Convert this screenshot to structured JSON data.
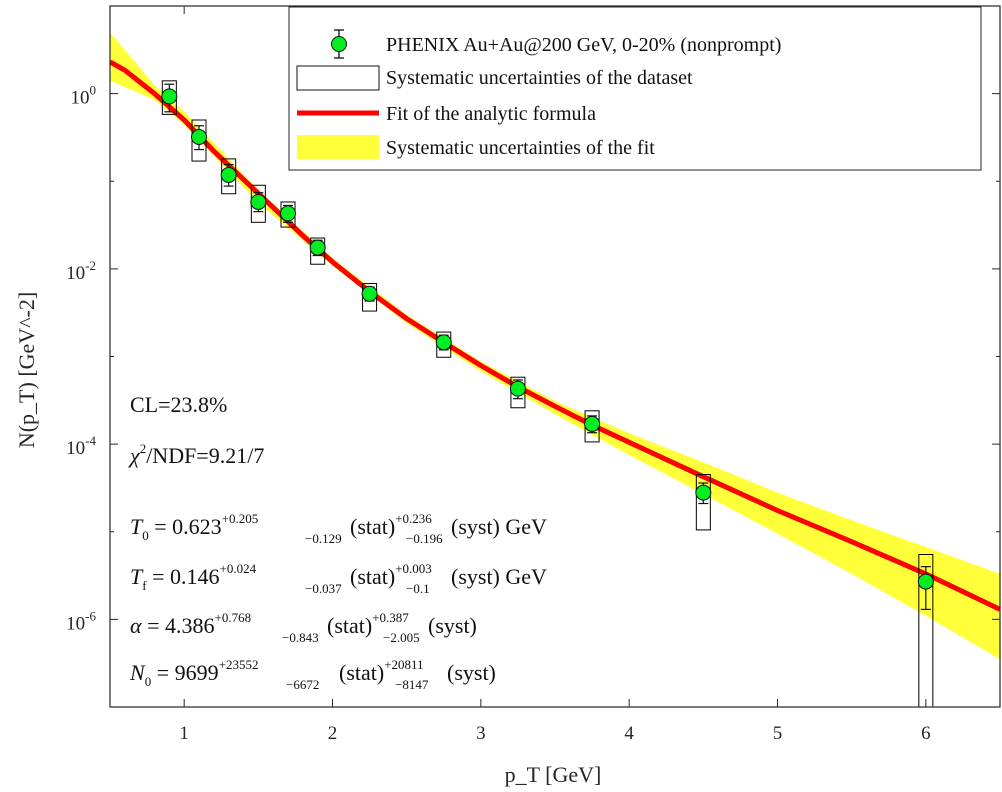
{
  "chart_data": {
    "type": "scatter",
    "title": "",
    "xlabel": "p_T [GeV]",
    "ylabel": "N(p_T) [GeV^-2]",
    "xlim": [
      0.5,
      6.5
    ],
    "ylim": [
      1e-07,
      10
    ],
    "y_scale": "log",
    "grid": false,
    "legend_position": "top-right",
    "x_ticks": [
      "1",
      "2",
      "3",
      "4",
      "5",
      "6"
    ],
    "y_ticks": [
      {
        "value": 1,
        "base": "10",
        "exp": "0"
      },
      {
        "value": 0.01,
        "base": "10",
        "exp": "-2"
      },
      {
        "value": 0.0001,
        "base": "10",
        "exp": "-4"
      },
      {
        "value": 1e-06,
        "base": "10",
        "exp": "-6"
      }
    ],
    "legend": [
      {
        "label": "PHENIX Au+Au@200 GeV, 0-20% (nonprompt)",
        "kind": "marker"
      },
      {
        "label": "Systematic uncertainties of the dataset",
        "kind": "box"
      },
      {
        "label": "Fit of the analytic formula",
        "kind": "line"
      },
      {
        "label": "Systematic uncertainties of the fit",
        "kind": "band"
      }
    ],
    "series": [
      {
        "name": "PHENIX Au+Au@200 GeV, 0-20% (nonprompt)",
        "points": [
          {
            "x": 0.9,
            "y": 0.93,
            "stat": [
              0.62,
              1.28
            ],
            "syst": [
              0.58,
              1.4
            ]
          },
          {
            "x": 1.1,
            "y": 0.32,
            "stat": [
              0.23,
              0.43
            ],
            "syst": [
              0.17,
              0.5
            ]
          },
          {
            "x": 1.3,
            "y": 0.118,
            "stat": [
              0.088,
              0.155
            ],
            "syst": [
              0.072,
              0.18
            ]
          },
          {
            "x": 1.5,
            "y": 0.058,
            "stat": [
              0.045,
              0.074
            ],
            "syst": [
              0.034,
              0.09
            ]
          },
          {
            "x": 1.7,
            "y": 0.043,
            "stat": [
              0.034,
              0.053
            ],
            "syst": [
              0.03,
              0.058
            ]
          },
          {
            "x": 1.9,
            "y": 0.0175,
            "stat": [
              0.0142,
              0.0212
            ],
            "syst": [
              0.0113,
              0.0225
            ]
          },
          {
            "x": 2.25,
            "y": 0.0052,
            "stat": [
              0.0043,
              0.0062
            ],
            "syst": [
              0.0033,
              0.0068
            ]
          },
          {
            "x": 2.75,
            "y": 0.00145,
            "stat": [
              0.00119,
              0.00175
            ],
            "syst": [
              0.00098,
              0.0019
            ]
          },
          {
            "x": 3.25,
            "y": 0.00043,
            "stat": [
              0.00033,
              0.00054
            ],
            "syst": [
              0.00026,
              0.00058
            ]
          },
          {
            "x": 3.75,
            "y": 0.00017,
            "stat": [
              0.000135,
              0.00021
            ],
            "syst": [
              0.000106,
              0.00024
            ]
          },
          {
            "x": 4.5,
            "y": 2.8e-05,
            "stat": [
              2.1e-05,
              3.6e-05
            ],
            "syst": [
              1.05e-05,
              4.5e-05
            ]
          },
          {
            "x": 6.0,
            "y": 2.7e-06,
            "stat": [
              1.3e-06,
              4e-06
            ],
            "syst": [
              1e-07,
              5.5e-06
            ]
          }
        ]
      },
      {
        "name": "Fit of the analytic formula",
        "x": [
          0.5,
          0.6,
          0.8,
          1.0,
          1.2,
          1.4,
          1.6,
          1.8,
          2.0,
          2.25,
          2.5,
          2.75,
          3.0,
          3.25,
          3.5,
          3.75,
          4.0,
          4.5,
          5.0,
          5.5,
          6.0,
          6.5
        ],
        "y": [
          2.3,
          1.85,
          1.0,
          0.5,
          0.22,
          0.105,
          0.05,
          0.024,
          0.012,
          0.0055,
          0.0027,
          0.00145,
          0.00079,
          0.00045,
          0.00027,
          0.000165,
          0.000105,
          4.25e-05,
          1.75e-05,
          7.7e-06,
          3.3e-06,
          1.3e-06
        ]
      },
      {
        "name": "Systematic uncertainties of the fit",
        "x": [
          0.5,
          0.8,
          1.0,
          1.5,
          2.0,
          2.5,
          3.0,
          3.5,
          4.0,
          4.5,
          5.0,
          5.5,
          6.0,
          6.5
        ],
        "y_low": [
          1.4,
          0.85,
          0.44,
          0.057,
          0.0108,
          0.0024,
          0.00068,
          0.00022,
          7.5e-05,
          2.7e-05,
          9.5e-06,
          3.3e-06,
          1.1e-06,
          3.5e-07
        ],
        "y_high": [
          5.0,
          1.25,
          0.62,
          0.08,
          0.0133,
          0.003,
          0.00088,
          0.00031,
          0.000133,
          6.2e-05,
          2.8e-05,
          1.35e-05,
          6.7e-06,
          3.3e-06
        ]
      }
    ],
    "colors": {
      "marker": "#00ee22",
      "fit": "#ff0000",
      "band": "#ffff3a",
      "box": "#000000"
    },
    "annotations": {
      "cl": "CL=23.8%",
      "chi2": {
        "sym": "χ",
        "sup": "2",
        "rest": "/NDF=9.21/7"
      },
      "t0": {
        "sym": "T",
        "sub": "0",
        "eq": " = 0.623",
        "sup1": "+0.205",
        "sub1": "−0.129",
        "mid": "(stat)",
        "sup2": "+0.236",
        "sub2": "−0.196",
        "tail": "(syst) GeV"
      },
      "tf": {
        "sym": "T",
        "sub": "f",
        "eq": " = 0.146",
        "sup1": "+0.024",
        "sub1": "−0.037",
        "mid": "(stat)",
        "sup2": "+0.003",
        "sub2": "−0.1",
        "tail": "(syst) GeV"
      },
      "alpha": {
        "sym": "α",
        "sub": "",
        "eq": " = 4.386",
        "sup1": "+0.768",
        "sub1": "−0.843",
        "mid": "(stat)",
        "sup2": "+0.387",
        "sub2": "−2.005",
        "tail": "(syst)"
      },
      "n0": {
        "sym": "N",
        "sub": "0",
        "eq": " = 9699",
        "sup1": "+23552",
        "sub1": "−6672",
        "mid": "(stat)",
        "sup2": "+20811",
        "sub2": "−8147",
        "tail": "(syst)"
      }
    }
  }
}
